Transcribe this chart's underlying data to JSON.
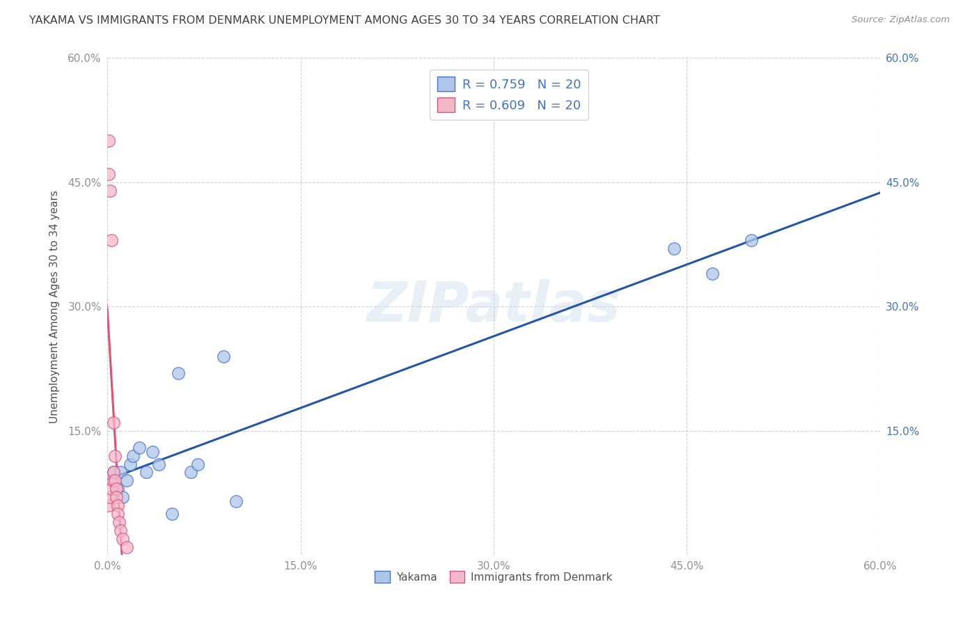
{
  "title": "YAKAMA VS IMMIGRANTS FROM DENMARK UNEMPLOYMENT AMONG AGES 30 TO 34 YEARS CORRELATION CHART",
  "source": "Source: ZipAtlas.com",
  "ylabel": "Unemployment Among Ages 30 to 34 years",
  "xlim": [
    0.0,
    0.6
  ],
  "ylim": [
    0.0,
    0.6
  ],
  "xticks": [
    0.0,
    0.15,
    0.3,
    0.45,
    0.6
  ],
  "yticks": [
    0.0,
    0.15,
    0.3,
    0.45,
    0.6
  ],
  "xtick_labels": [
    "0.0%",
    "15.0%",
    "30.0%",
    "45.0%",
    "60.0%"
  ],
  "left_ytick_labels": [
    "",
    "15.0%",
    "30.0%",
    "45.0%",
    "60.0%"
  ],
  "right_ytick_labels": [
    "",
    "15.0%",
    "30.0%",
    "45.0%",
    "60.0%"
  ],
  "watermark_text": "ZIPatlas",
  "legend_R_blue": "0.759",
  "legend_N_blue": "20",
  "legend_R_pink": "0.609",
  "legend_N_pink": "20",
  "yakama_x": [
    0.005,
    0.008,
    0.01,
    0.012,
    0.015,
    0.018,
    0.02,
    0.025,
    0.03,
    0.035,
    0.04,
    0.05,
    0.055,
    0.065,
    0.07,
    0.09,
    0.1,
    0.44,
    0.47,
    0.5
  ],
  "yakama_y": [
    0.1,
    0.08,
    0.1,
    0.07,
    0.09,
    0.11,
    0.12,
    0.13,
    0.1,
    0.125,
    0.11,
    0.05,
    0.22,
    0.1,
    0.11,
    0.24,
    0.065,
    0.37,
    0.34,
    0.38
  ],
  "denmark_x": [
    0.001,
    0.001,
    0.001,
    0.002,
    0.002,
    0.003,
    0.003,
    0.004,
    0.005,
    0.005,
    0.006,
    0.006,
    0.007,
    0.007,
    0.008,
    0.008,
    0.009,
    0.01,
    0.012,
    0.015
  ],
  "denmark_y": [
    0.5,
    0.46,
    0.06,
    0.44,
    0.07,
    0.38,
    0.08,
    0.09,
    0.16,
    0.1,
    0.12,
    0.09,
    0.08,
    0.07,
    0.06,
    0.05,
    0.04,
    0.03,
    0.02,
    0.01
  ],
  "blue_scatter_color": "#aec6e8",
  "blue_edge_color": "#4472c4",
  "pink_scatter_color": "#f4b8c8",
  "pink_edge_color": "#d45080",
  "blue_line_color": "#2255aa",
  "pink_line_color": "#e05070",
  "grid_color": "#cccccc",
  "grid_style": "--",
  "title_color": "#404040",
  "left_tick_color": "#909090",
  "right_tick_color": "#4472c4",
  "ylabel_color": "#505050",
  "source_color": "#909090",
  "background_color": "#ffffff"
}
